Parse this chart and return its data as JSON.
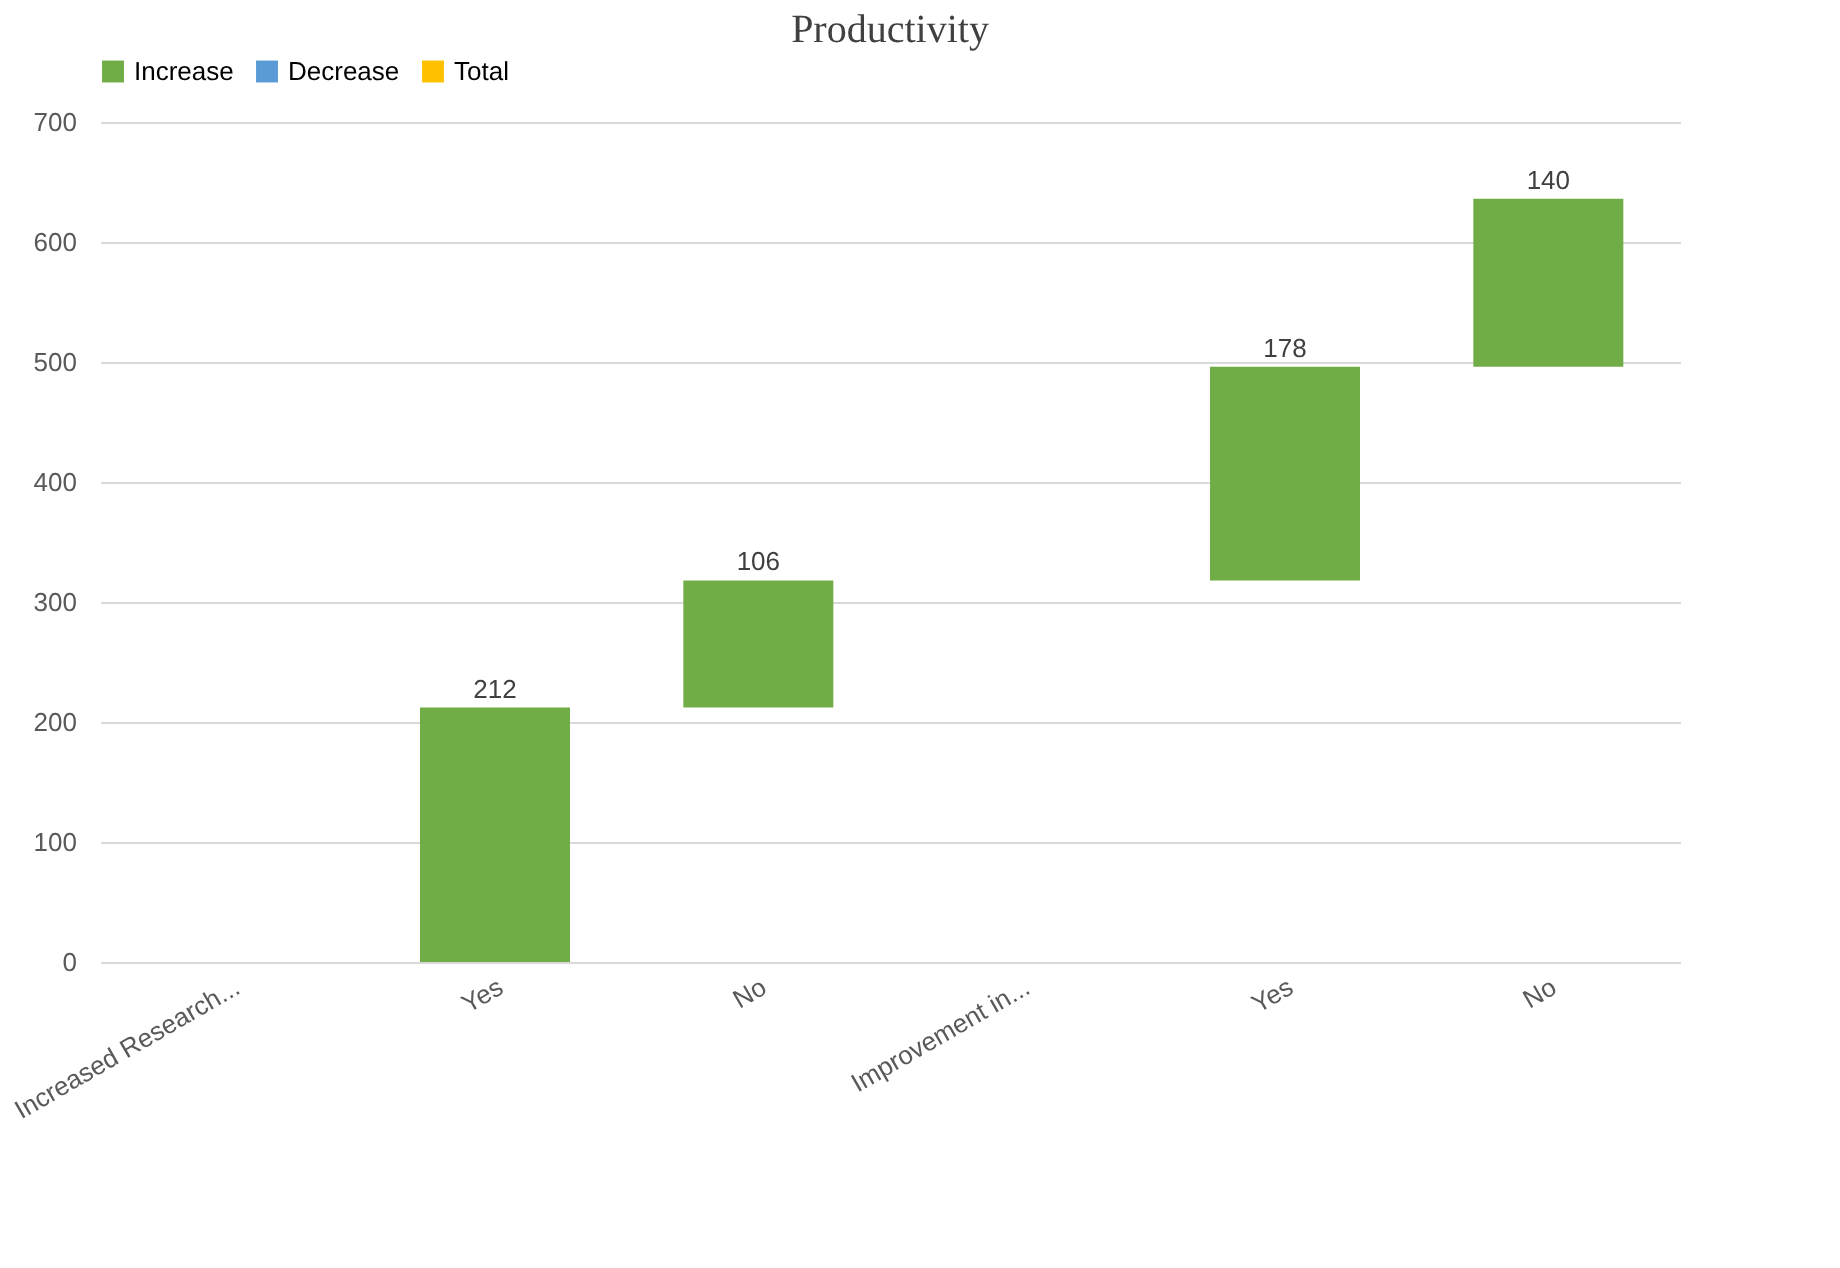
{
  "chart_data": {
    "type": "bar",
    "title": "Productivity",
    "categories": [
      "Increased Research...",
      "Yes",
      "No",
      "Improvement in...",
      "Yes",
      "No"
    ],
    "series": [
      {
        "name": "Increase",
        "color": "#70ad47",
        "values": [
          null,
          212,
          106,
          null,
          178,
          140
        ],
        "base": [
          null,
          0,
          212,
          null,
          318,
          496
        ],
        "value_labels": [
          null,
          "212",
          "106",
          null,
          "178",
          "140"
        ]
      },
      {
        "name": "Decrease",
        "color": "#5b9bd5",
        "values": [
          null,
          null,
          null,
          null,
          null,
          null
        ]
      },
      {
        "name": "Total",
        "color": "#ffc000",
        "values": [
          null,
          null,
          null,
          null,
          null,
          null
        ]
      }
    ],
    "ylim": [
      0,
      700
    ],
    "yticks": [
      0,
      100,
      200,
      300,
      400,
      500,
      600,
      700
    ],
    "grid": "y",
    "legend": "top"
  }
}
